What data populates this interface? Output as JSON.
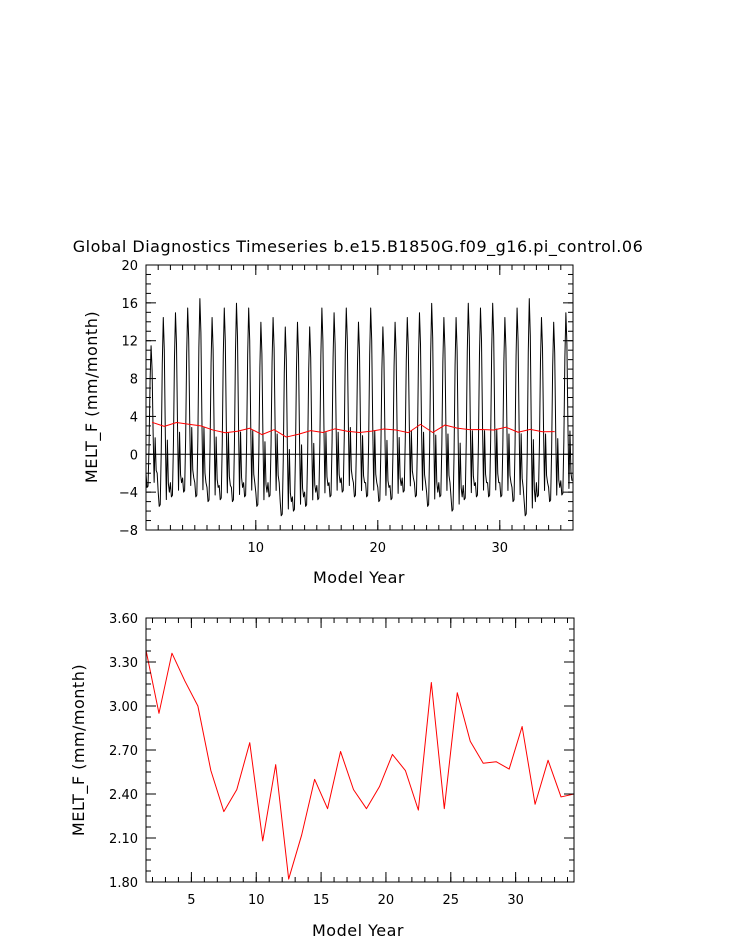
{
  "chart_data": [
    {
      "type": "line",
      "title": "Global Diagnostics Timeseries b.e15.B1850G.f09_g16.pi_control.06",
      "xlabel": "Model Year",
      "ylabel": "MELT_F (mm/month)",
      "xlim": [
        1,
        36
      ],
      "ylim": [
        -8,
        20
      ],
      "xticks": [
        10,
        20,
        30
      ],
      "yticks": [
        -8,
        -4,
        0,
        4,
        8,
        12,
        16,
        20
      ],
      "ytick_labels": [
        "−8",
        "−4",
        "0",
        "4",
        "8",
        "12",
        "16",
        "20"
      ],
      "zero_line": true,
      "grid": false,
      "series": [
        {
          "color": "#000000",
          "x_start": 1.0,
          "x_step": 0.0833333,
          "yearly_min": [
            -3.5,
            -5.5,
            -4.5,
            -4.0,
            -4.5,
            -5.0,
            -4.8,
            -5.0,
            -4.5,
            -5.5,
            -4.5,
            -6.5,
            -6.0,
            -5.5,
            -4.8,
            -4.5,
            -4.0,
            -4.5,
            -4.5,
            -5.0,
            -4.8,
            -4.0,
            -4.5,
            -5.5,
            -4.5,
            -6.0,
            -4.8,
            -4.5,
            -4.5,
            -4.5,
            -5.0,
            -6.5,
            -4.5,
            -5.0,
            -4.3
          ],
          "yearly_max": [
            11.5,
            14.5,
            15.0,
            15.5,
            16.5,
            14.5,
            15.5,
            16.0,
            15.5,
            14.0,
            14.5,
            13.5,
            14.0,
            13.5,
            15.5,
            15.0,
            15.5,
            14.0,
            15.5,
            13.5,
            14.0,
            14.5,
            15.0,
            16.0,
            14.5,
            14.5,
            16.0,
            15.5,
            16.0,
            14.5,
            15.5,
            16.5,
            14.5,
            14.0,
            15.0
          ]
        },
        {
          "color": "#ff0000",
          "x": [
            1.5,
            2.5,
            3.5,
            4.5,
            5.5,
            6.5,
            7.5,
            8.5,
            9.5,
            10.5,
            11.5,
            12.5,
            13.5,
            14.5,
            15.5,
            16.5,
            17.5,
            18.5,
            19.5,
            20.5,
            21.5,
            22.5,
            23.5,
            24.5,
            25.5,
            26.5,
            27.5,
            28.5,
            29.5,
            30.5,
            31.5,
            32.5,
            33.5,
            34.5
          ],
          "y": [
            3.38,
            2.95,
            3.36,
            3.17,
            3.0,
            2.56,
            2.28,
            2.43,
            2.75,
            2.08,
            2.6,
            1.82,
            2.12,
            2.5,
            2.3,
            2.69,
            2.43,
            2.3,
            2.45,
            2.67,
            2.56,
            2.29,
            3.16,
            2.3,
            3.09,
            2.76,
            2.61,
            2.62,
            2.57,
            2.86,
            2.33,
            2.63,
            2.38,
            2.4
          ]
        }
      ]
    },
    {
      "type": "line",
      "xlabel": "Model Year",
      "ylabel": "MELT_F (mm/month)",
      "xlim": [
        1.5,
        34.5
      ],
      "ylim": [
        1.8,
        3.6
      ],
      "xticks": [
        5,
        10,
        15,
        20,
        25,
        30
      ],
      "yticks": [
        1.8,
        2.1,
        2.4,
        2.7,
        3.0,
        3.3,
        3.6
      ],
      "ytick_labels": [
        "1.80",
        "2.10",
        "2.40",
        "2.70",
        "3.00",
        "3.30",
        "3.60"
      ],
      "grid": false,
      "series": [
        {
          "color": "#ff0000",
          "x": [
            1.5,
            2.5,
            3.5,
            4.5,
            5.5,
            6.5,
            7.5,
            8.5,
            9.5,
            10.5,
            11.5,
            12.5,
            13.5,
            14.5,
            15.5,
            16.5,
            17.5,
            18.5,
            19.5,
            20.5,
            21.5,
            22.5,
            23.5,
            24.5,
            25.5,
            26.5,
            27.5,
            28.5,
            29.5,
            30.5,
            31.5,
            32.5,
            33.5,
            34.5
          ],
          "y": [
            3.38,
            2.95,
            3.36,
            3.17,
            3.0,
            2.56,
            2.28,
            2.43,
            2.75,
            2.08,
            2.6,
            1.82,
            2.12,
            2.5,
            2.3,
            2.69,
            2.43,
            2.3,
            2.45,
            2.67,
            2.56,
            2.29,
            3.16,
            2.3,
            3.09,
            2.76,
            2.61,
            2.62,
            2.57,
            2.86,
            2.33,
            2.63,
            2.38,
            2.4
          ]
        }
      ]
    }
  ]
}
